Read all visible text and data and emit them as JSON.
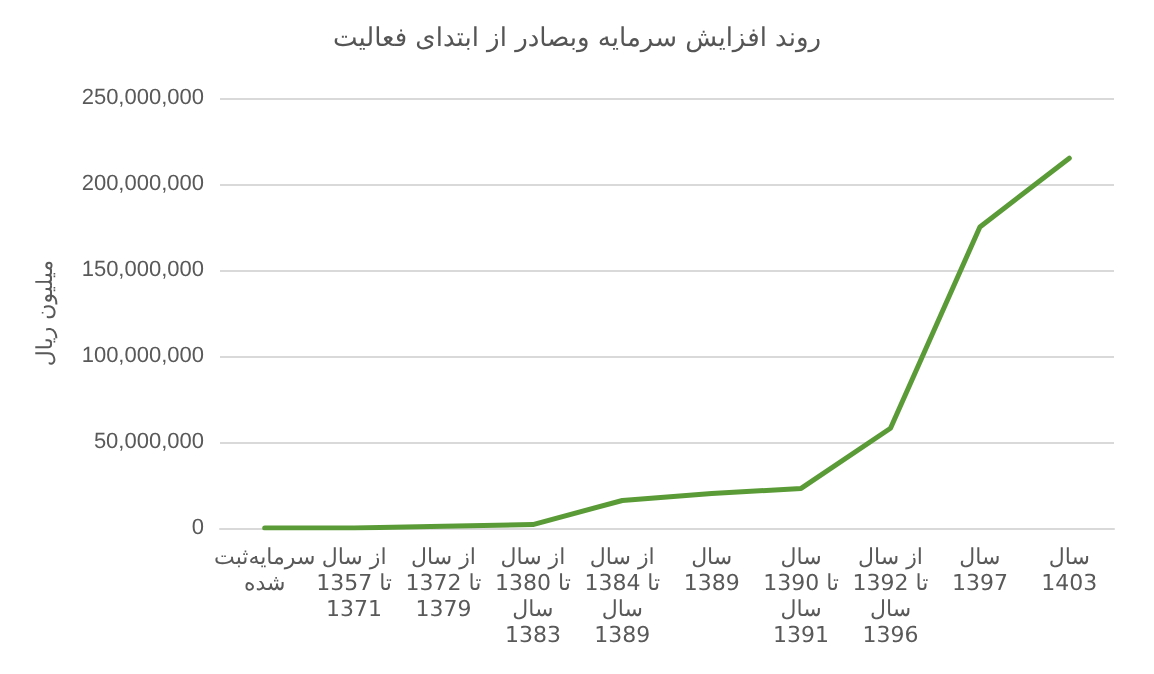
{
  "chart_data": {
    "type": "line",
    "title": "روند افزایش سرمایه وبصادر از ابتدای فعالیت",
    "ylabel": "میلیون ریال",
    "categories": [
      "سرمایه‌ثبت\nشده",
      "از سال\n1357 تا\n1371",
      "از سال\n1372 تا\n1379",
      "از سال\n1380 تا\nسال\n1383",
      "از سال\n1384 تا\nسال\n1389",
      "سال\n1389",
      "سال\n1390 تا\nسال\n1391",
      "از سال\n1392 تا\nسال\n1396",
      "سال\n1397",
      "سال\n1403"
    ],
    "series": [
      {
        "color": "#5b9b37",
        "values": [
          0,
          0,
          1000000,
          2000000,
          16000000,
          20000000,
          23000000,
          58000000,
          175000000,
          215000000
        ]
      }
    ],
    "ylim": [
      0,
      250000000
    ],
    "yticks": [
      0,
      {
        "value": 50000000,
        "label": "50,000,000"
      },
      {
        "value": 100000000,
        "label": "100,000,000"
      },
      {
        "value": 150000000,
        "label": "150,000,000"
      },
      {
        "value": 200000000,
        "label": "200,000,000"
      },
      {
        "value": 250000000,
        "label": "250,000,000"
      }
    ],
    "grid": "y",
    "marker": "none",
    "line_style": "solid"
  }
}
